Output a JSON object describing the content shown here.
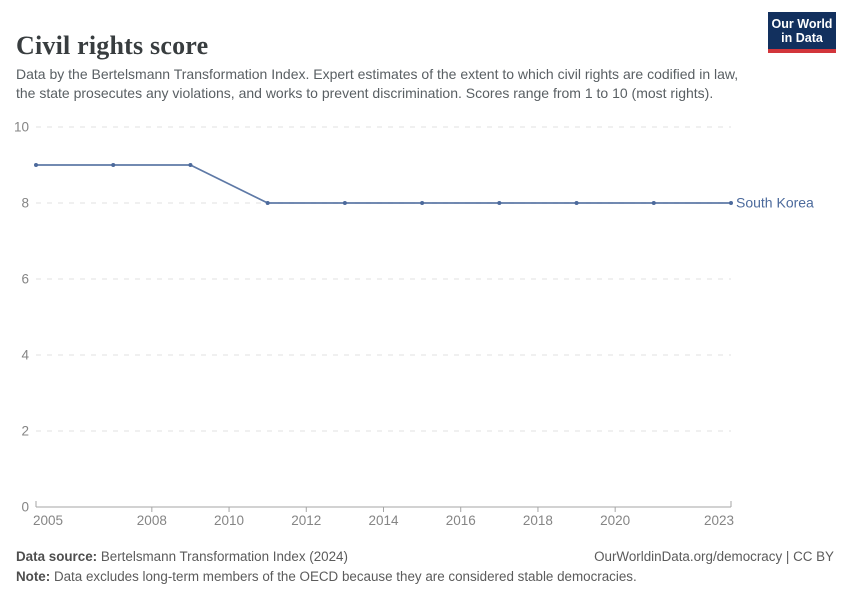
{
  "header": {
    "title": "Civil rights score",
    "subtitle": "Data by the Bertelsmann Transformation Index. Expert estimates of the extent to which civil rights are codified in law, the state prosecutes any violations, and works to prevent discrimination. Scores range from 1 to 10 (most rights).",
    "logo": {
      "line1": "Our World",
      "line2": "in Data",
      "bg_color": "#12305e",
      "accent_color": "#d2353b"
    }
  },
  "chart_data": {
    "type": "line",
    "title": "Civil rights score",
    "xlabel": "",
    "ylabel": "",
    "xlim": [
      2005,
      2023
    ],
    "ylim": [
      0,
      10
    ],
    "x_ticks": [
      2005,
      2008,
      2010,
      2012,
      2014,
      2016,
      2018,
      2020,
      2023
    ],
    "y_ticks": [
      0,
      2,
      4,
      6,
      8,
      10
    ],
    "grid": true,
    "legend_position": "end-of-line",
    "series": [
      {
        "name": "South Korea",
        "color": "#4c6a9c",
        "x": [
          2005,
          2007,
          2009,
          2011,
          2013,
          2015,
          2017,
          2019,
          2021,
          2023
        ],
        "values": [
          9,
          9,
          9,
          8,
          8,
          8,
          8,
          8,
          8,
          8
        ]
      }
    ],
    "style": {
      "gridline_color": "#e0e0e0",
      "axis_color": "#a5a5a5",
      "tick_label_color": "#858585"
    }
  },
  "footer": {
    "data_source_label": "Data source:",
    "data_source_text": " Bertelsmann Transformation Index (2024)",
    "right_text": "OurWorldinData.org/democracy | CC BY",
    "note_label": "Note:",
    "note_text": " Data excludes long-term members of the OECD because they are considered stable democracies."
  }
}
